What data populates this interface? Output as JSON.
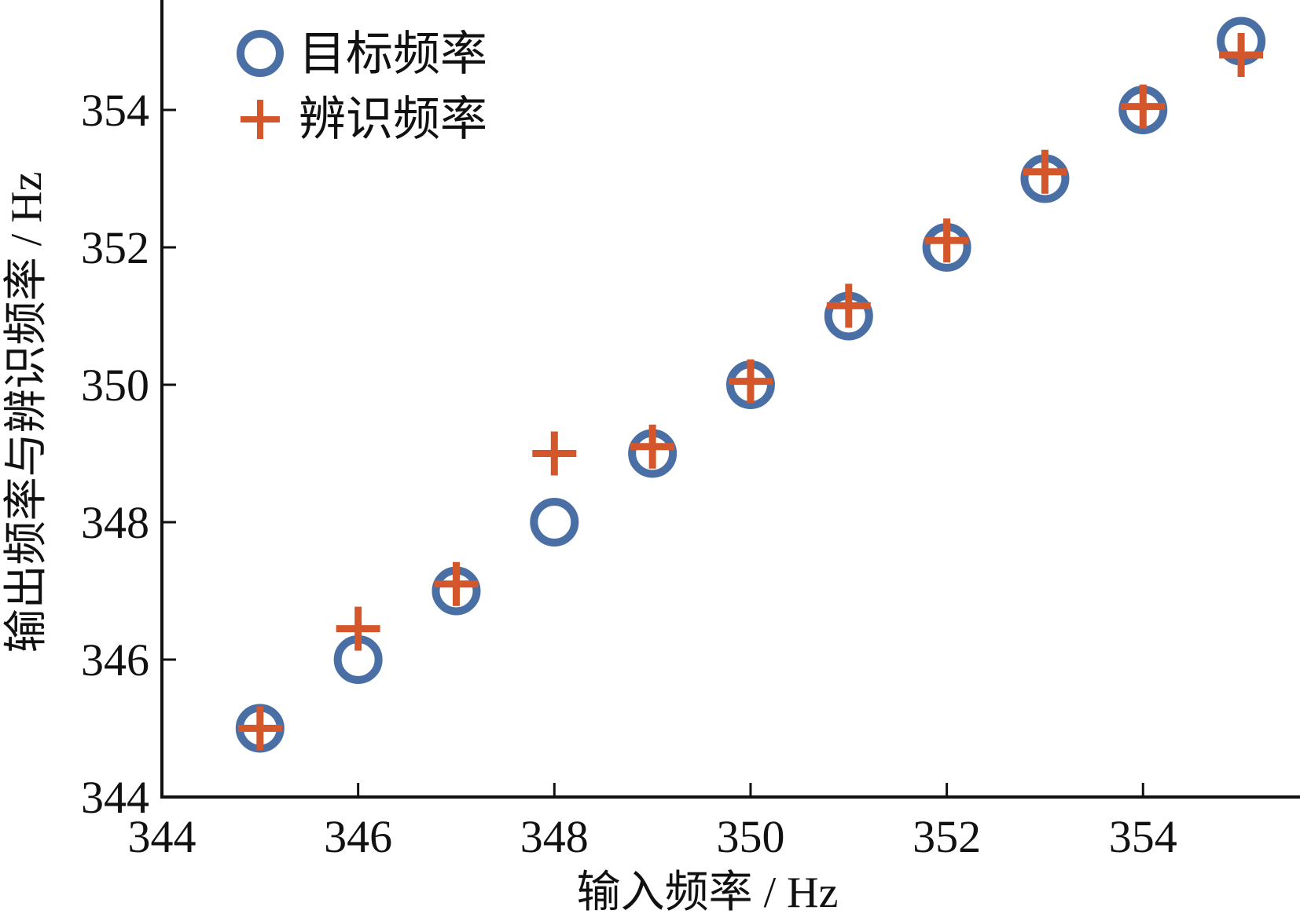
{
  "chart_data": {
    "type": "scatter",
    "title": "",
    "xlabel": "输入频率 / Hz",
    "ylabel": "输出频率与辨识频率 / Hz",
    "xlim": [
      344,
      355.6
    ],
    "ylim": [
      344,
      355.6
    ],
    "x_ticks": [
      "344",
      "346",
      "348",
      "350",
      "352",
      "354"
    ],
    "y_ticks": [
      "344",
      "346",
      "348",
      "350",
      "352",
      "354"
    ],
    "grid": false,
    "legend_position": "top-left",
    "series": [
      {
        "name": "目标频率",
        "marker": "circle",
        "color": "#4a6fa5",
        "x": [
          345,
          346,
          347,
          348,
          349,
          350,
          351,
          352,
          353,
          354,
          355
        ],
        "y": [
          345,
          346,
          347,
          348,
          349,
          350,
          351,
          352,
          353,
          354,
          355
        ]
      },
      {
        "name": "辨识频率",
        "marker": "plus",
        "color": "#d4572b",
        "x": [
          345,
          346,
          347,
          348,
          349,
          350,
          351,
          352,
          353,
          354,
          355
        ],
        "y": [
          345.0,
          346.45,
          347.1,
          349.0,
          349.1,
          350.05,
          351.15,
          352.1,
          353.1,
          354.05,
          354.8
        ]
      }
    ]
  }
}
